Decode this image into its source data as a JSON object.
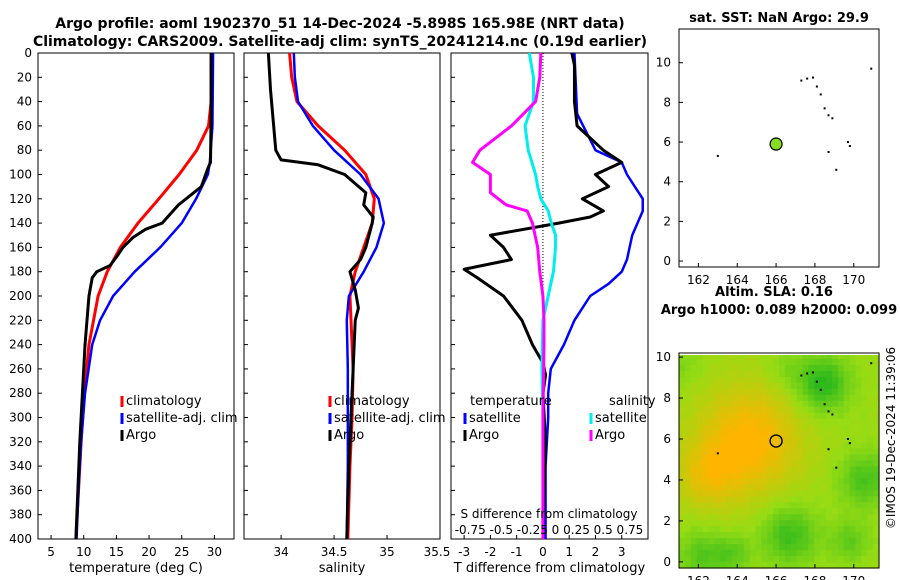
{
  "figure": {
    "title_line1": "Argo profile: aoml 1902370_51 14-Dec-2024 -5.898S 165.98E (NRT data)",
    "title_line2": "Climatology: CARS2009. Satellite-adj clim: synTS_20241214.nc (0.19d earlier)",
    "side_label": "©IMOS 19-Dec-2024 11:39:06",
    "colors": {
      "climatology": "#ff0000",
      "satellite": "#0000ff",
      "argo": "#000000",
      "sat_diff_s": "#00eeee",
      "argo_diff_s": "#ff00ff",
      "dot": "#88dd22"
    }
  },
  "chart_data": [
    {
      "type": "line",
      "id": "temperature",
      "xlabel": "temperature (deg C)",
      "xlim": [
        3,
        33
      ],
      "ylim": [
        0,
        400
      ],
      "xticks": [
        5,
        10,
        15,
        20,
        25,
        30
      ],
      "yticks": [
        0,
        20,
        40,
        60,
        80,
        100,
        120,
        140,
        160,
        180,
        200,
        220,
        240,
        260,
        280,
        300,
        320,
        340,
        360,
        380,
        400
      ],
      "legend": [
        "climatology",
        "satellite-adj. clim",
        "Argo"
      ],
      "series": [
        {
          "name": "climatology",
          "depth": [
            0,
            40,
            60,
            80,
            100,
            120,
            140,
            160,
            180,
            200,
            240,
            280,
            320,
            360,
            400
          ],
          "values": [
            29.5,
            29.5,
            29.1,
            27.3,
            24.6,
            21.5,
            18.3,
            15.6,
            13.6,
            12.2,
            10.8,
            10.1,
            9.6,
            9.2,
            8.8
          ]
        },
        {
          "name": "satellite-adj. clim",
          "depth": [
            0,
            60,
            90,
            100,
            120,
            140,
            160,
            180,
            200,
            220,
            240,
            280,
            320,
            360,
            400
          ],
          "values": [
            29.8,
            29.7,
            29.3,
            29.0,
            27.2,
            25.0,
            21.7,
            17.8,
            14.5,
            12.5,
            11.3,
            10.2,
            9.6,
            9.2,
            8.9
          ]
        },
        {
          "name": "Argo",
          "depth": [
            0,
            50,
            90,
            95,
            110,
            125,
            140,
            145,
            152,
            160,
            168,
            175,
            180,
            185,
            200,
            220,
            240,
            280,
            320,
            360,
            400
          ],
          "values": [
            29.5,
            29.5,
            29.4,
            29.0,
            28.0,
            24.5,
            22.0,
            19.5,
            17.5,
            16.0,
            15.0,
            14.0,
            12.0,
            11.3,
            10.8,
            10.5,
            10.2,
            9.8,
            9.4,
            9.1,
            8.8
          ]
        }
      ]
    },
    {
      "type": "line",
      "id": "salinity",
      "xlabel": "salinity",
      "xlim": [
        33.65,
        35.5
      ],
      "ylim": [
        0,
        400
      ],
      "xticks": [
        34,
        34.5,
        35
      ],
      "xtick_labels": [
        "34",
        "34.5",
        "35"
      ],
      "xtick_extra": "35.5",
      "legend": [
        "climatology",
        "satellite-adj. clim",
        "Argo"
      ],
      "series": [
        {
          "name": "climatology",
          "depth": [
            0,
            20,
            40,
            60,
            80,
            100,
            120,
            140,
            160,
            180,
            200,
            220,
            260,
            300,
            340,
            400
          ],
          "values": [
            34.08,
            34.1,
            34.15,
            34.35,
            34.6,
            34.8,
            34.88,
            34.86,
            34.78,
            34.7,
            34.65,
            34.66,
            34.68,
            34.67,
            34.65,
            34.63
          ]
        },
        {
          "name": "satellite-adj. clim",
          "depth": [
            0,
            20,
            40,
            60,
            80,
            100,
            120,
            140,
            160,
            180,
            200,
            220,
            260,
            300,
            340,
            400
          ],
          "values": [
            34.12,
            34.13,
            34.16,
            34.3,
            34.5,
            34.75,
            34.92,
            34.97,
            34.9,
            34.78,
            34.64,
            34.62,
            34.63,
            34.63,
            34.63,
            34.62
          ]
        },
        {
          "name": "Argo",
          "depth": [
            0,
            30,
            60,
            80,
            88,
            92,
            100,
            115,
            125,
            135,
            140,
            150,
            160,
            170,
            180,
            195,
            210,
            220,
            240,
            260,
            280,
            300,
            340,
            400
          ],
          "values": [
            33.88,
            33.9,
            33.93,
            33.95,
            34.0,
            34.35,
            34.6,
            34.8,
            34.78,
            34.87,
            34.86,
            34.83,
            34.8,
            34.75,
            34.65,
            34.7,
            34.73,
            34.7,
            34.69,
            34.68,
            34.67,
            34.66,
            34.64,
            34.62
          ]
        }
      ]
    },
    {
      "type": "line",
      "id": "differences",
      "xlabel": "T difference from climatology",
      "xlim": [
        -3.5,
        4
      ],
      "ylim": [
        0,
        400
      ],
      "xticks": [
        -3,
        -2,
        -1,
        0,
        1,
        2,
        3
      ],
      "top_axis_label": "S difference from climatology",
      "top_axis_ticks": "-0.75 -0.5 -0.25 0 0.25 0.5 0.75",
      "legend_temperature_title": "temperature",
      "legend_salinity_title": "salinity",
      "legend_temperature": [
        "satellite",
        "Argo"
      ],
      "legend_salinity": [
        "satellite",
        "Argo"
      ],
      "series": [
        {
          "name": "T satellite",
          "depth": [
            0,
            50,
            80,
            90,
            100,
            110,
            120,
            130,
            140,
            150,
            160,
            170,
            180,
            190,
            200,
            220,
            240,
            260,
            280,
            300,
            340,
            400
          ],
          "values": [
            1.2,
            1.3,
            2.0,
            3.0,
            3.2,
            3.5,
            3.8,
            3.8,
            3.6,
            3.4,
            3.3,
            3.2,
            3.0,
            2.5,
            1.8,
            1.2,
            0.8,
            0.3,
            0.2,
            0.2,
            0.1,
            0.1
          ]
        },
        {
          "name": "T Argo",
          "depth": [
            0,
            10,
            40,
            60,
            80,
            90,
            100,
            110,
            120,
            130,
            135,
            140,
            150,
            160,
            170,
            178,
            185,
            200,
            220,
            240,
            255,
            265,
            280,
            320,
            360,
            400
          ],
          "values": [
            1.1,
            1.2,
            1.2,
            1.3,
            2.3,
            3.0,
            2.0,
            2.5,
            1.5,
            2.3,
            1.8,
            0.6,
            -2.0,
            -1.5,
            -1.2,
            -3.0,
            -2.5,
            -1.5,
            -0.8,
            -0.4,
            0.0,
            0.1,
            0.0,
            0.1,
            0.05,
            0.0
          ]
        },
        {
          "name": "S satellite",
          "s_scale": 0.25,
          "depth": [
            0,
            20,
            40,
            60,
            80,
            100,
            110,
            120,
            130,
            140,
            150,
            160,
            180,
            200,
            220,
            260,
            300,
            400
          ],
          "values": [
            -0.13,
            -0.09,
            -0.09,
            -0.17,
            -0.14,
            -0.07,
            -0.05,
            -0.02,
            0.05,
            0.08,
            0.12,
            0.12,
            0.1,
            0.05,
            0.0,
            -0.01,
            0.0,
            0.0
          ]
        },
        {
          "name": "S Argo",
          "s_scale": 0.25,
          "depth": [
            0,
            20,
            40,
            60,
            70,
            80,
            90,
            100,
            115,
            125,
            130,
            140,
            160,
            180,
            200,
            220,
            240,
            300,
            400
          ],
          "values": [
            -0.02,
            -0.03,
            -0.07,
            -0.3,
            -0.45,
            -0.6,
            -0.67,
            -0.5,
            -0.5,
            -0.35,
            -0.15,
            -0.1,
            -0.05,
            -0.03,
            0.0,
            0.01,
            0.01,
            0.0,
            0.0
          ]
        }
      ]
    },
    {
      "type": "scatter",
      "id": "sst_map",
      "title": "sat. SST: NaN Argo: 29.9",
      "xlim": [
        161,
        171.3
      ],
      "ylim": [
        -0.3,
        11.7
      ],
      "xticks": [
        162,
        164,
        166,
        168,
        170
      ],
      "yticks": [
        0,
        2,
        4,
        6,
        8,
        10
      ],
      "argo_position": [
        166,
        5.9
      ],
      "islands": [
        [
          163,
          5.3
        ],
        [
          167.3,
          9.1
        ],
        [
          167.6,
          9.2
        ],
        [
          167.9,
          9.25
        ],
        [
          168.1,
          8.8
        ],
        [
          168.3,
          8.4
        ],
        [
          168.5,
          7.7
        ],
        [
          168.7,
          7.35
        ],
        [
          168.9,
          7.2
        ],
        [
          169.7,
          6.0
        ],
        [
          169.8,
          5.8
        ],
        [
          169.1,
          4.6
        ],
        [
          168.7,
          5.5
        ],
        [
          170.9,
          9.7
        ]
      ]
    },
    {
      "type": "heatmap",
      "id": "sla_map",
      "title": "Altim. SLA: 0.16",
      "title2": "Argo h1000: 0.089 h2000: 0.099",
      "xlim": [
        161,
        171.3
      ],
      "ylim": [
        -0.3,
        10.2
      ],
      "xticks": [
        162,
        164,
        166,
        168,
        170
      ],
      "yticks": [
        0,
        2,
        4,
        6,
        8,
        10
      ],
      "argo_position": [
        166,
        5.9
      ]
    }
  ]
}
